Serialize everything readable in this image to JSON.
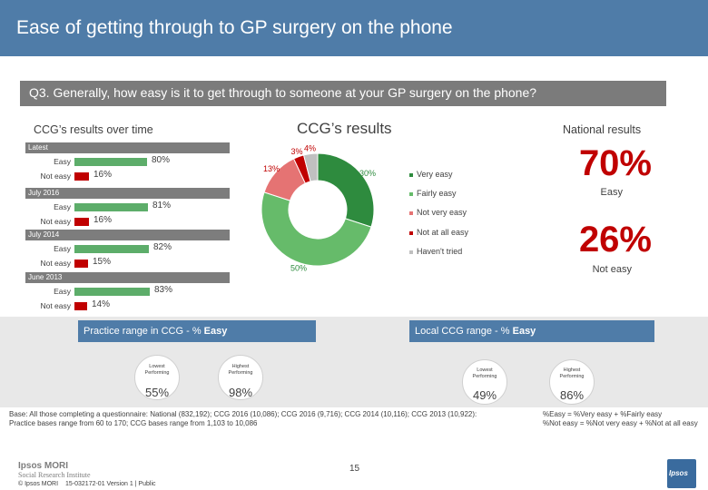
{
  "header": {
    "title": "Ease of getting through to GP surgery on the phone"
  },
  "question": "Q3. Generally, how easy is it to get through to someone at your GP surgery on the phone?",
  "labels": {
    "over_time": "CCG’s results over time",
    "ccg_results": "CCG’s results",
    "national": "National results"
  },
  "colors": {
    "header_blue": "#4f7ca8",
    "easy_bar": "#5dad6a",
    "not_easy_bar": "#c00000",
    "very_easy": "#2e8b3e",
    "fairly_easy": "#66bb6a",
    "not_very_easy": "#e57373",
    "not_at_all_easy": "#c00000",
    "havent_tried": "#c0c0c0"
  },
  "trend": [
    {
      "period": "Latest",
      "easy_label": "Easy",
      "easy": 80,
      "easy_text": "80%",
      "not_label": "Not easy",
      "not_easy": 16,
      "not_text": "16%"
    },
    {
      "period": "July 2016",
      "easy_label": "Easy",
      "easy": 81,
      "easy_text": "81%",
      "not_label": "Not easy",
      "not_easy": 16,
      "not_text": "16%"
    },
    {
      "period": "July 2014",
      "easy_label": "Easy",
      "easy": 82,
      "easy_text": "82%",
      "not_label": "Not easy",
      "not_easy": 15,
      "not_text": "15%"
    },
    {
      "period": "June 2013",
      "easy_label": "Easy",
      "easy": 83,
      "easy_text": "83%",
      "not_label": "Not easy",
      "not_easy": 14,
      "not_text": "14%"
    }
  ],
  "chart_data": {
    "type": "pie",
    "donut": true,
    "categories": [
      "Very easy",
      "Fairly easy",
      "Not very easy",
      "Not at all easy",
      "Haven't tried"
    ],
    "values": [
      30,
      50,
      13,
      3,
      4
    ],
    "value_labels": [
      "30%",
      "50%",
      "13%",
      "3%",
      "4%"
    ],
    "legend": [
      "Very easy",
      "Fairly easy",
      "Not very easy",
      "Not at all easy",
      "Haven't tried"
    ],
    "legend_position": "right"
  },
  "national": {
    "easy_value": "70%",
    "easy_label": "Easy",
    "not_value": "26%",
    "not_label": "Not easy"
  },
  "practice_range": {
    "title_prefix": "Practice range in CCG - % ",
    "title_bold": "Easy",
    "lowest_caption": "Lowest Performing",
    "lowest_value": "55%",
    "highest_caption": "Highest Performing",
    "highest_value": "98%"
  },
  "local_range": {
    "title_prefix": "Local CCG range - % ",
    "title_bold": "Easy",
    "lowest_caption": "Lowest Performing",
    "lowest_value": "49%",
    "highest_caption": "Highest Performing",
    "highest_value": "86%"
  },
  "base": {
    "line1": "Base: All those completing a questionnaire: National (832,192); CCG 2016 (10,086); CCG 2016 (9,716); CCG 2014 (10,116); CCG 2013 (10,922):",
    "line2": "Practice bases range from 60 to 170; CCG bases range from 1,103 to 10,086"
  },
  "definitions": {
    "line1": "%Easy = %Very easy + %Fairly easy",
    "line2": "%Not easy = %Not very easy + %Not at all easy"
  },
  "footer": {
    "logo_line1": "Ipsos MORI",
    "logo_line2": "Social Research Institute",
    "copyright": "© Ipsos MORI",
    "reference": "15-032172-01 Version 1 | Public",
    "page": "15",
    "brand": "Ipsos"
  }
}
